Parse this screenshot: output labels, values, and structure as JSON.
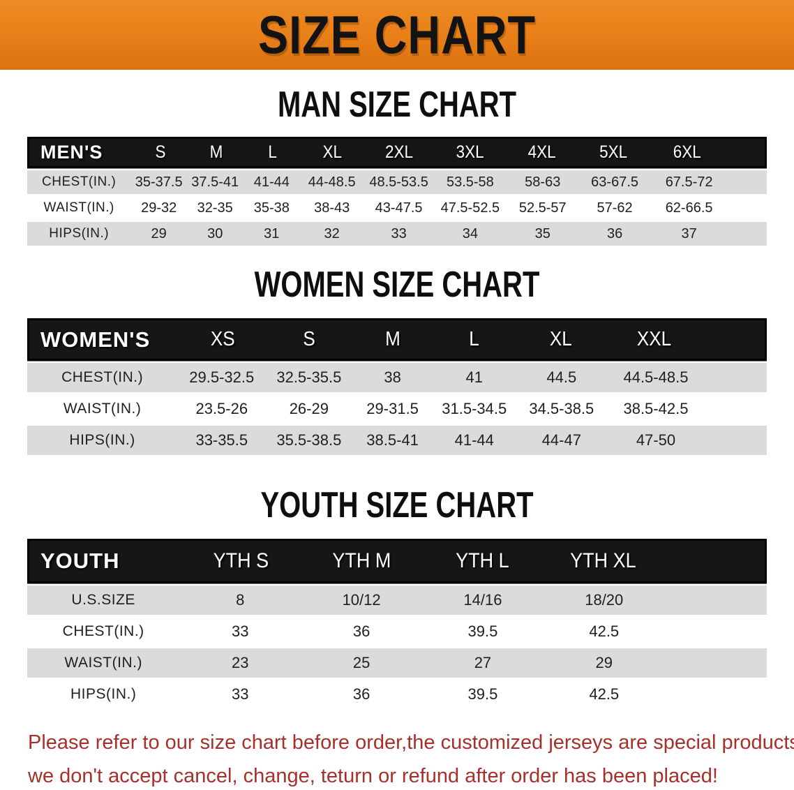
{
  "banner": {
    "title": "SIZE CHART",
    "bg_color": "#e87e18"
  },
  "colors": {
    "banner_orange": "#e87e18",
    "header_black": "#161616",
    "row_gray": "#dbdbdb",
    "notice_red": "#a6302a"
  },
  "sections": [
    {
      "heading": "MAN SIZE CHART",
      "table": {
        "label": "MEN'S",
        "columns": [
          "S",
          "M",
          "L",
          "XL",
          "2XL",
          "3XL",
          "4XL",
          "5XL",
          "6XL"
        ],
        "rows": [
          {
            "label": "CHEST(IN.)",
            "values": [
              "35-37.5",
              "37.5-41",
              "41-44",
              "44-48.5",
              "48.5-53.5",
              "53.5-58",
              "58-63",
              "63-67.5",
              "67.5-72"
            ]
          },
          {
            "label": "WAIST(IN.)",
            "values": [
              "29-32",
              "32-35",
              "35-38",
              "38-43",
              "43-47.5",
              "47.5-52.5",
              "52.5-57",
              "57-62",
              "62-66.5"
            ]
          },
          {
            "label": "HIPS(IN.)",
            "values": [
              "29",
              "30",
              "31",
              "32",
              "33",
              "34",
              "35",
              "36",
              "37"
            ]
          }
        ]
      }
    },
    {
      "heading": "WOMEN SIZE CHART",
      "table": {
        "label": "WOMEN'S",
        "columns": [
          "XS",
          "S",
          "M",
          "L",
          "XL",
          "XXL"
        ],
        "rows": [
          {
            "label": "CHEST(IN.)",
            "values": [
              "29.5-32.5",
              "32.5-35.5",
              "38",
              "41",
              "44.5",
              "44.5-48.5"
            ]
          },
          {
            "label": "WAIST(IN.)",
            "values": [
              "23.5-26",
              "26-29",
              "29-31.5",
              "31.5-34.5",
              "34.5-38.5",
              "38.5-42.5"
            ]
          },
          {
            "label": "HIPS(IN.)",
            "values": [
              "33-35.5",
              "35.5-38.5",
              "38.5-41",
              "41-44",
              "44-47",
              "47-50"
            ]
          }
        ]
      }
    },
    {
      "heading": "YOUTH SIZE CHART",
      "table": {
        "label": "YOUTH",
        "columns": [
          "YTH S",
          "YTH M",
          "YTH L",
          "YTH XL"
        ],
        "rows": [
          {
            "label": "U.S.SIZE",
            "values": [
              "8",
              "10/12",
              "14/16",
              "18/20"
            ]
          },
          {
            "label": "CHEST(IN.)",
            "values": [
              "33",
              "36",
              "39.5",
              "42.5"
            ]
          },
          {
            "label": "WAIST(IN.)",
            "values": [
              "23",
              "25",
              "27",
              "29"
            ]
          },
          {
            "label": "HIPS(IN.)",
            "values": [
              "33",
              "36",
              "39.5",
              "42.5"
            ]
          }
        ]
      }
    }
  ],
  "footer": {
    "line1": "Please refer to our size chart before order,the customized jerseys are special products,",
    "line2": "we don't accept cancel, change, teturn or refund after order has been placed!"
  }
}
